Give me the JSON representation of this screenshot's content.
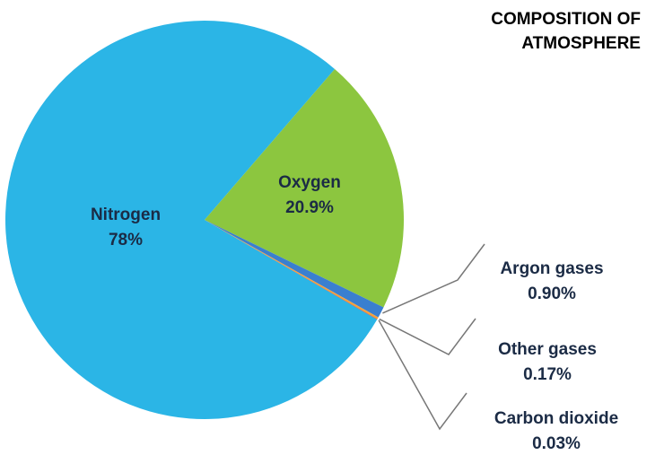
{
  "chart_data": {
    "type": "pie",
    "title": "COMPOSITION OF ATMOSPHERE",
    "categories": [
      "Nitrogen",
      "Oxygen",
      "Argon gases",
      "Other gases",
      "Carbon dioxide"
    ],
    "values": [
      78,
      20.9,
      0.9,
      0.17,
      0.03
    ],
    "value_labels": [
      "78%",
      "20.9%",
      "0.90%",
      "0.17%",
      "0.03%"
    ],
    "colors": [
      "#2bb5e6",
      "#8cc63f",
      "#3a7fd0",
      "#f5a33a",
      "#c8323a"
    ]
  }
}
